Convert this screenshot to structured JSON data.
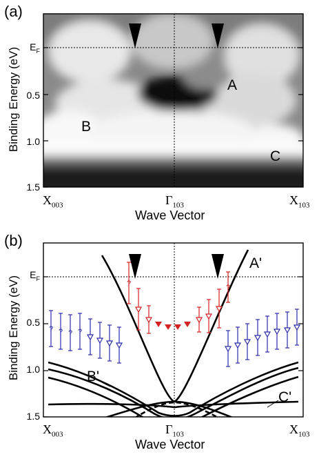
{
  "panel_a": {
    "label": "(a)",
    "ylabel": "Binding Energy (eV)",
    "xlabel": "Wave Vector",
    "y_ticks": [
      "E",
      "0.5",
      "1.0",
      "1.5"
    ],
    "ef_sub": "F",
    "x_ticks": [
      {
        "main": "X",
        "sub": "003"
      },
      {
        "main": "Γ",
        "sub": "103"
      },
      {
        "main": "X",
        "sub": "103"
      }
    ],
    "annotations": [
      "A",
      "B",
      "C"
    ]
  },
  "panel_b": {
    "label": "(b)",
    "ylabel": "Binding Energy (eV)",
    "xlabel": "Wave Vector",
    "y_ticks": [
      "E",
      "0.5",
      "1.0",
      "1.5"
    ],
    "ef_sub": "F",
    "x_ticks": [
      {
        "main": "X",
        "sub": "003"
      },
      {
        "main": "Γ",
        "sub": "103"
      },
      {
        "main": "X",
        "sub": "103"
      }
    ],
    "annotations": [
      "A'",
      "B'",
      "C'"
    ],
    "question_mark": "?"
  },
  "colors": {
    "blue": "#2a2aa8",
    "red": "#d42020",
    "black": "#000000"
  }
}
